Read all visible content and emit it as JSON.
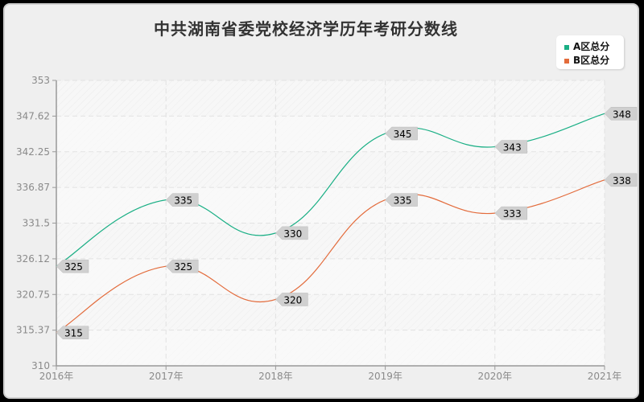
{
  "title": "中共湖南省委党校经济学历年考研分数线",
  "legend": [
    {
      "label": "A区总分",
      "color": "#1aaf85"
    },
    {
      "label": "B区总分",
      "color": "#e36b3b"
    }
  ],
  "colors": {
    "series_a": "#1aaf85",
    "series_b": "#e36b3b",
    "background": "#efefef",
    "label_bg": "#d0d0d0"
  },
  "chart_data": {
    "type": "line",
    "title": "中共湖南省委党校经济学历年考研分数线",
    "categories": [
      "2016年",
      "2017年",
      "2018年",
      "2019年",
      "2020年",
      "2021年"
    ],
    "series": [
      {
        "name": "A区总分",
        "values": [
          325,
          335,
          330,
          345,
          343,
          348
        ]
      },
      {
        "name": "B区总分",
        "values": [
          315,
          325,
          320,
          335,
          333,
          338
        ]
      }
    ],
    "xlabel": "",
    "ylabel": "",
    "ylim": [
      310,
      353
    ],
    "yticks": [
      "353",
      "347.62",
      "342.25",
      "336.87",
      "331.5",
      "326.12",
      "320.75",
      "315.37",
      "310"
    ],
    "grid": true,
    "legend_position": "top-right",
    "smooth": true
  }
}
